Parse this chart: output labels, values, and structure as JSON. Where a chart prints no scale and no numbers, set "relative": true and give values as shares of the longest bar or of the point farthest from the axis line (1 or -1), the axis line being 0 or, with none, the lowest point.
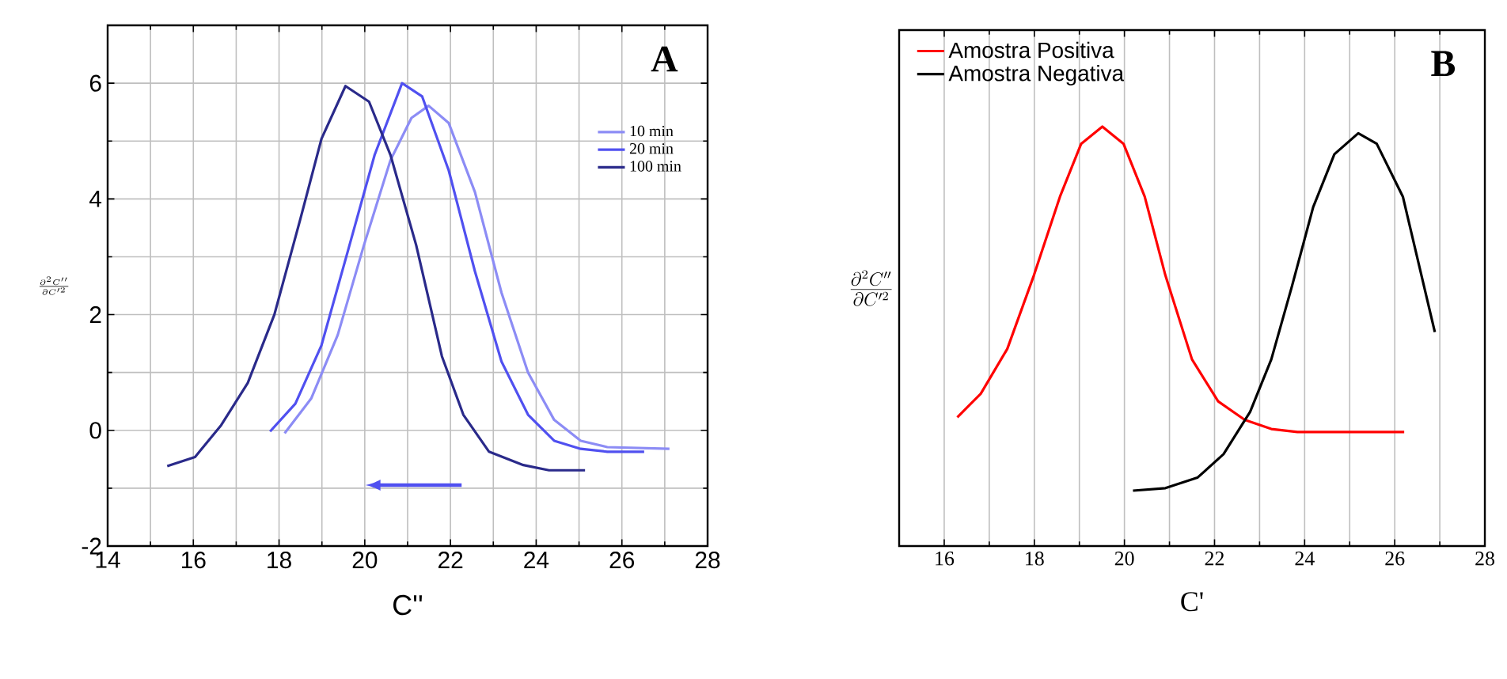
{
  "chart_data": [
    {
      "type": "line",
      "xlabel": "C''",
      "ylabel": "\\frac{\\partial^2 C''}{\\partial C'^2}",
      "xlim": [
        14,
        28
      ],
      "ylim": [
        -2,
        7
      ],
      "xticks": [
        14,
        16,
        18,
        20,
        22,
        24,
        26,
        28
      ],
      "yticks": [
        -2,
        0,
        2,
        4,
        6
      ],
      "grid": true,
      "legend": "top right",
      "annotations": [
        "A"
      ],
      "series": [
        {
          "name": "10 min",
          "color": "#8c8cf5",
          "x": [
            18.13,
            18.75,
            19.37,
            19.98,
            20.6,
            21.09,
            21.49,
            21.96,
            22.57,
            23.19,
            23.81,
            24.42,
            25.04,
            25.66,
            27.11
          ],
          "values": [
            -0.05,
            0.55,
            1.65,
            3.2,
            4.67,
            5.4,
            5.61,
            5.31,
            4.12,
            2.38,
            1.0,
            0.18,
            -0.18,
            -0.29,
            -0.32
          ]
        },
        {
          "name": "20 min",
          "color": "#5050f0",
          "x": [
            17.79,
            18.38,
            18.99,
            19.61,
            20.23,
            20.87,
            21.34,
            21.96,
            22.57,
            23.19,
            23.81,
            24.42,
            25.04,
            25.66,
            26.52
          ],
          "values": [
            -0.02,
            0.46,
            1.47,
            3.11,
            4.76,
            6.0,
            5.77,
            4.49,
            2.75,
            1.19,
            0.27,
            -0.18,
            -0.32,
            -0.37,
            -0.37
          ]
        },
        {
          "name": "100 min",
          "color": "#2a2a8a",
          "x": [
            15.39,
            16.04,
            16.65,
            17.27,
            17.89,
            18.5,
            18.99,
            19.55,
            20.1,
            20.6,
            21.2,
            21.8,
            22.3,
            22.9,
            23.7,
            24.3,
            25.14
          ],
          "values": [
            -0.62,
            -0.46,
            0.09,
            0.82,
            2.0,
            3.66,
            5.04,
            5.95,
            5.68,
            4.76,
            3.2,
            1.28,
            0.27,
            -0.37,
            -0.6,
            -0.69,
            -0.69
          ]
        }
      ]
    },
    {
      "type": "line",
      "xlabel": "C'",
      "ylabel": "\\frac{\\partial^2 C''}{\\partial C'^2}",
      "xlim": [
        15,
        28
      ],
      "xticks": [
        16,
        18,
        20,
        22,
        24,
        26,
        28
      ],
      "relative": true,
      "grid": true,
      "legend": "top left",
      "annotations": [
        "B"
      ],
      "series": [
        {
          "name": "Amostra Positiva",
          "color": "#ff0000",
          "x": [
            16.29,
            16.81,
            17.4,
            17.99,
            18.57,
            19.04,
            19.51,
            19.98,
            20.45,
            20.91,
            21.5,
            22.08,
            22.67,
            23.26,
            23.84,
            26.21
          ],
          "values": [
            0.307,
            0.363,
            0.47,
            0.645,
            0.833,
            0.959,
            1.0,
            0.959,
            0.833,
            0.645,
            0.445,
            0.345,
            0.301,
            0.279,
            0.272,
            0.272
          ]
        },
        {
          "name": "Amostra Negativa",
          "color": "#000000",
          "x": [
            20.19,
            20.91,
            21.62,
            22.2,
            22.79,
            23.26,
            23.72,
            24.19,
            24.66,
            25.19,
            25.6,
            26.18,
            26.89
          ],
          "values": [
            0.132,
            0.138,
            0.163,
            0.219,
            0.32,
            0.445,
            0.62,
            0.808,
            0.934,
            0.984,
            0.959,
            0.833,
            0.51
          ]
        }
      ]
    }
  ]
}
